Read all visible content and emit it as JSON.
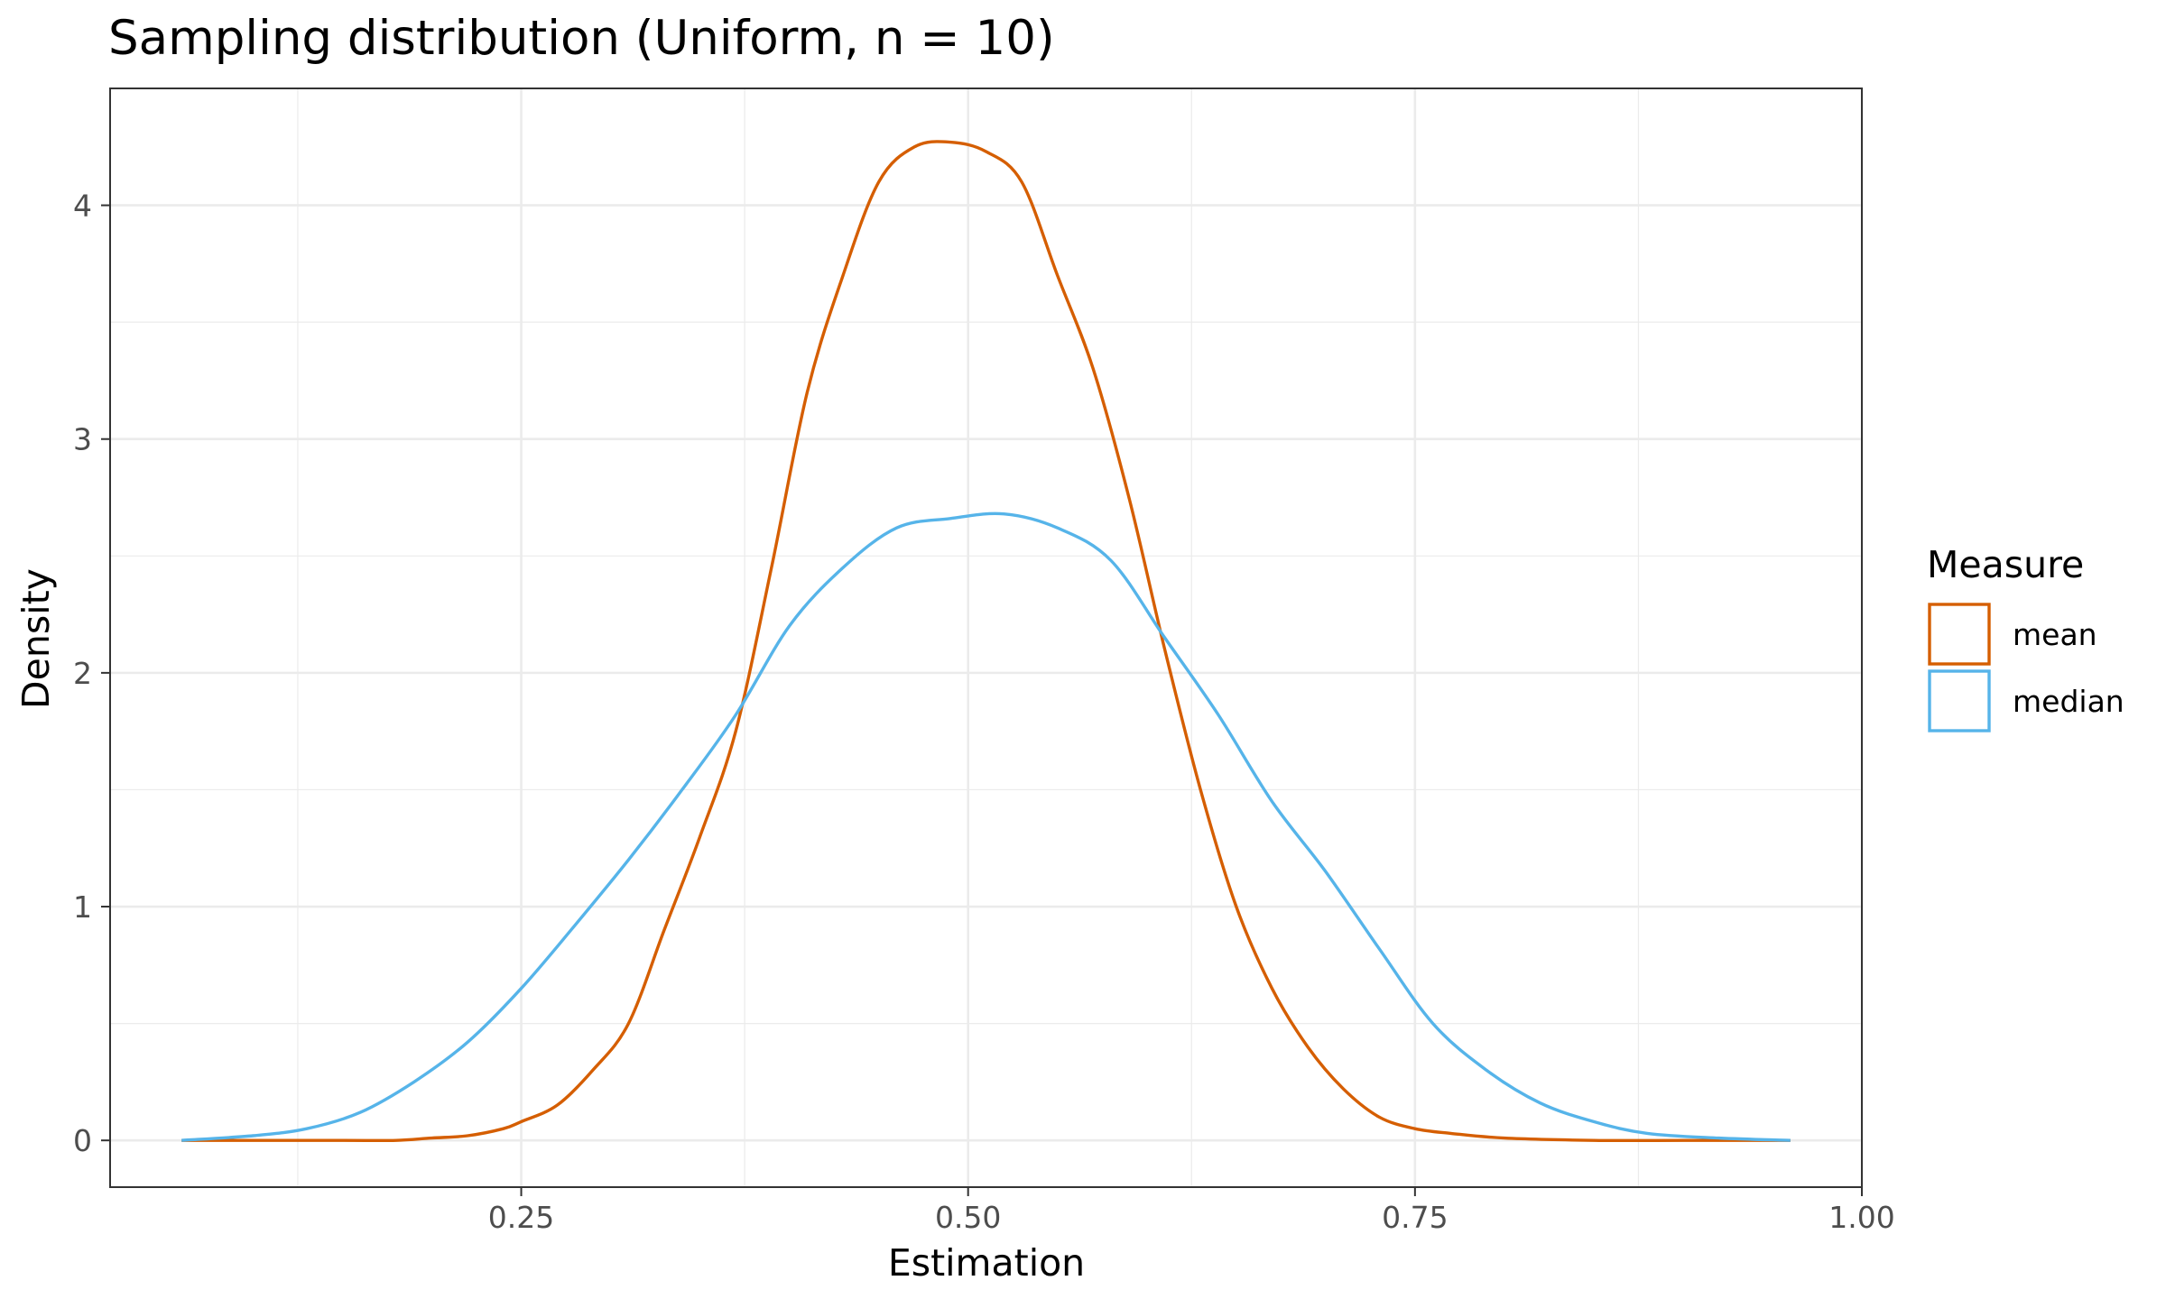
{
  "chart_data": {
    "type": "line",
    "title": "Sampling distribution (Uniform, n = 10)",
    "xlabel": "Estimation",
    "ylabel": "Density",
    "xlim": [
      0.02,
      1.0
    ],
    "ylim": [
      -0.2,
      4.5
    ],
    "x_ticks": [
      0.25,
      0.5,
      0.75,
      1.0
    ],
    "x_tick_labels": [
      "0.25",
      "0.50",
      "0.75",
      "1.00"
    ],
    "y_ticks": [
      0,
      1,
      2,
      3,
      4
    ],
    "y_tick_labels": [
      "0",
      "1",
      "2",
      "3",
      "4"
    ],
    "grid": true,
    "legend": {
      "title": "Measure",
      "position": "right"
    },
    "series": [
      {
        "name": "mean",
        "color": "#d55e00",
        "x": [
          0.06,
          0.1,
          0.15,
          0.18,
          0.2,
          0.22,
          0.24,
          0.25,
          0.27,
          0.29,
          0.31,
          0.33,
          0.35,
          0.37,
          0.39,
          0.41,
          0.43,
          0.45,
          0.47,
          0.49,
          0.51,
          0.53,
          0.55,
          0.57,
          0.59,
          0.61,
          0.63,
          0.65,
          0.67,
          0.69,
          0.71,
          0.73,
          0.75,
          0.77,
          0.8,
          0.85,
          0.9,
          0.96
        ],
        "y": [
          0.0,
          0.0,
          0.0,
          0.0,
          0.01,
          0.02,
          0.05,
          0.08,
          0.15,
          0.3,
          0.5,
          0.9,
          1.3,
          1.75,
          2.45,
          3.2,
          3.7,
          4.1,
          4.25,
          4.27,
          4.23,
          4.1,
          3.7,
          3.3,
          2.75,
          2.1,
          1.5,
          1.0,
          0.65,
          0.4,
          0.22,
          0.1,
          0.05,
          0.03,
          0.01,
          0.0,
          0.0,
          0.0
        ]
      },
      {
        "name": "median",
        "color": "#56b4e9",
        "x": [
          0.06,
          0.1,
          0.13,
          0.16,
          0.19,
          0.22,
          0.25,
          0.28,
          0.31,
          0.34,
          0.37,
          0.4,
          0.43,
          0.46,
          0.49,
          0.52,
          0.55,
          0.58,
          0.61,
          0.64,
          0.67,
          0.7,
          0.73,
          0.76,
          0.79,
          0.82,
          0.85,
          0.88,
          0.92,
          0.96
        ],
        "y": [
          0.0,
          0.02,
          0.05,
          0.12,
          0.25,
          0.42,
          0.65,
          0.92,
          1.2,
          1.5,
          1.82,
          2.2,
          2.45,
          2.62,
          2.66,
          2.68,
          2.62,
          2.48,
          2.15,
          1.82,
          1.45,
          1.15,
          0.82,
          0.5,
          0.3,
          0.16,
          0.08,
          0.03,
          0.01,
          0.0
        ]
      }
    ]
  }
}
